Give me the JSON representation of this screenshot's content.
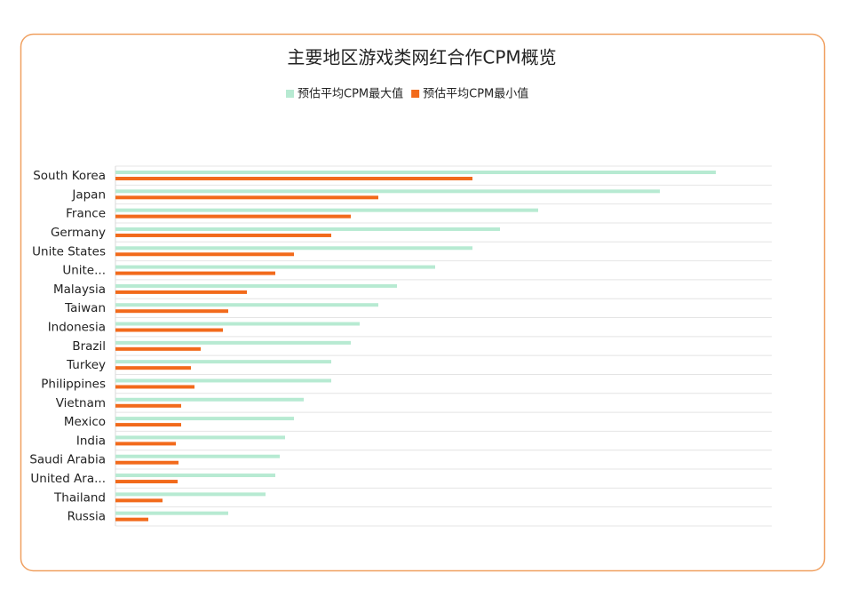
{
  "chart_data": {
    "type": "hbar",
    "title": "主要地区游戏类网红合作CPM概览",
    "categories": [
      "South Korea",
      "Japan",
      "France",
      "Germany",
      "Unite States",
      "Unite...",
      "Malaysia",
      "Taiwan",
      "Indonesia",
      "Brazil",
      "Turkey",
      "Philippines",
      "Vietnam",
      "Mexico",
      "India",
      "Saudi Arabia",
      "United Ara...",
      "Thailand",
      "Russia"
    ],
    "series": [
      {
        "name": "预估平均CPM最大值",
        "color": "#b7ead2",
        "values": [
          6.76,
          6.13,
          4.76,
          4.33,
          4.02,
          3.6,
          3.17,
          2.96,
          2.75,
          2.65,
          2.43,
          2.43,
          2.12,
          2.01,
          1.91,
          1.85,
          1.8,
          1.69,
          1.27
        ]
      },
      {
        "name": "预估平均CPM最小值",
        "color": "#f26a1b",
        "values": [
          4.02,
          2.96,
          2.65,
          2.43,
          2.01,
          1.8,
          1.48,
          1.27,
          1.21,
          0.96,
          0.85,
          0.89,
          0.74,
          0.74,
          0.68,
          0.71,
          0.7,
          0.53,
          0.37
        ]
      }
    ],
    "xlim": [
      0,
      7.39
    ],
    "legend": "top",
    "grid": true
  }
}
